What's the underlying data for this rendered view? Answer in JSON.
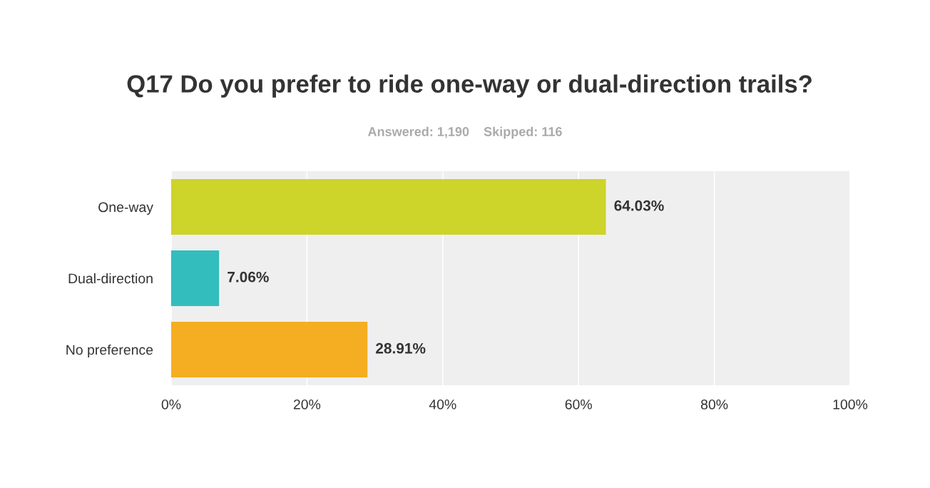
{
  "chart_data": {
    "type": "bar",
    "orientation": "horizontal",
    "title": "Q17 Do you prefer to ride one-way or dual-direction trails?",
    "subtitle": "Answered: 1,190    Skipped: 116",
    "categories": [
      "One-way",
      "Dual-direction",
      "No preference"
    ],
    "values": [
      64.03,
      7.06,
      28.91
    ],
    "colors": [
      "#cdd42a",
      "#33bdbd",
      "#f5ae22"
    ],
    "value_labels": [
      "64.03%",
      "7.06%",
      "28.91%"
    ],
    "xlim": [
      0,
      100
    ],
    "xticks": [
      {
        "value": 0,
        "label": "0%"
      },
      {
        "value": 20,
        "label": "20%"
      },
      {
        "value": 40,
        "label": "40%"
      },
      {
        "value": 60,
        "label": "60%"
      },
      {
        "value": 80,
        "label": "80%"
      },
      {
        "value": 100,
        "label": "100%"
      }
    ],
    "grid": "x"
  }
}
